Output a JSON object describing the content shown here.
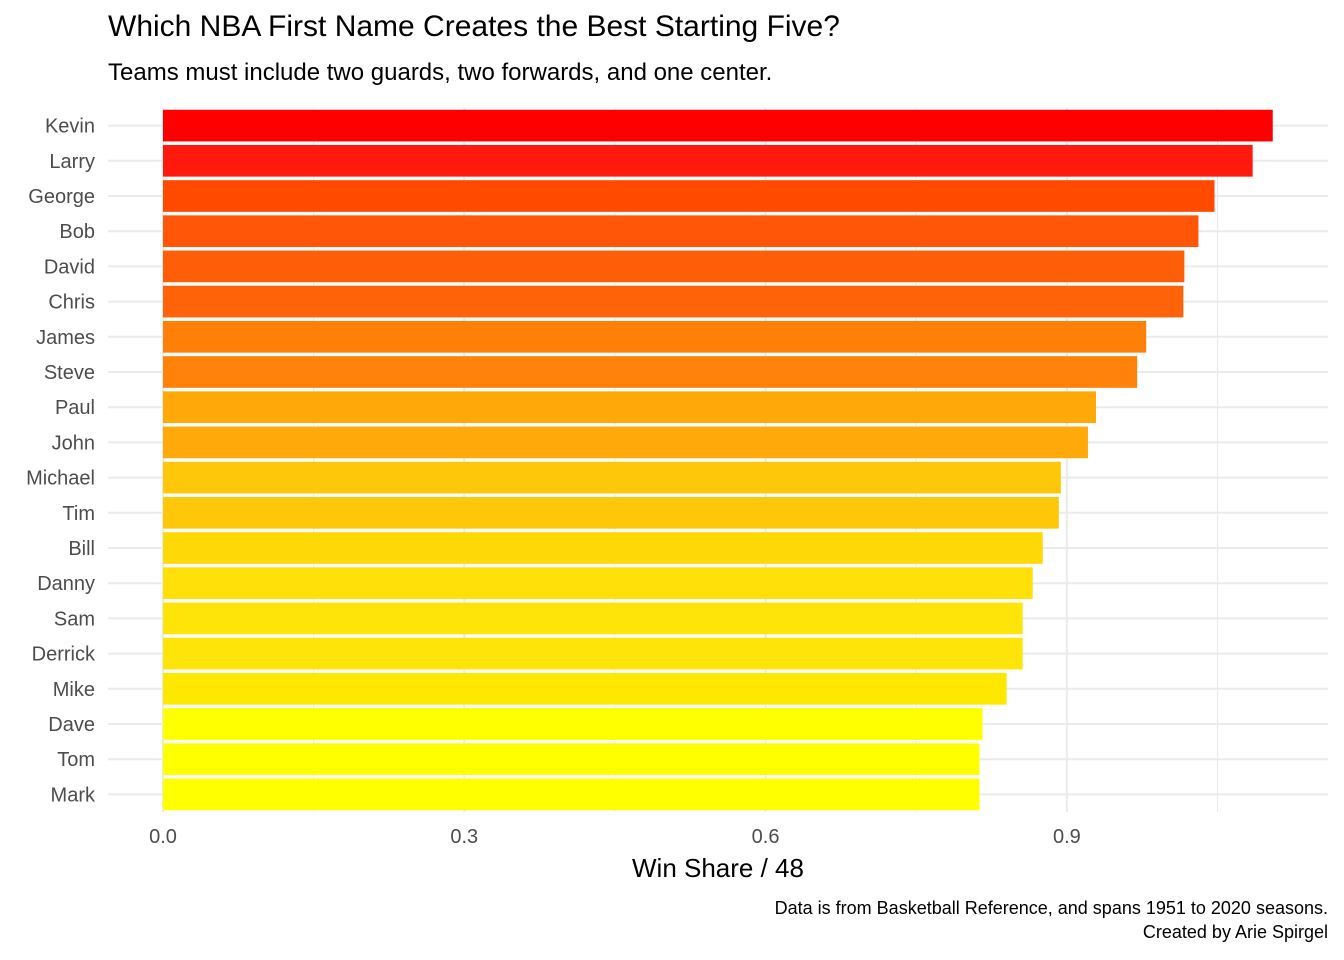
{
  "chart_data": {
    "type": "bar",
    "orientation": "horizontal",
    "title": "Which NBA First Name Creates the Best Starting Five?",
    "subtitle": "Teams must include two guards, two forwards, and one center.",
    "xlabel": "Win Share / 48",
    "ylabel": "",
    "caption": [
      "Data is from Basketball Reference, and spans 1951 to 2020 seasons.",
      "Created by Arie Spirgel"
    ],
    "categories": [
      "Kevin",
      "Larry",
      "George",
      "Bob",
      "David",
      "Chris",
      "James",
      "Steve",
      "Paul",
      "John",
      "Michael",
      "Tim",
      "Bill",
      "Danny",
      "Sam",
      "Derrick",
      "Mike",
      "Dave",
      "Tom",
      "Mark"
    ],
    "values": [
      1.105,
      1.085,
      1.047,
      1.031,
      1.017,
      1.016,
      0.979,
      0.97,
      0.929,
      0.921,
      0.894,
      0.892,
      0.876,
      0.866,
      0.856,
      0.856,
      0.84,
      0.816,
      0.813,
      0.813
    ],
    "colors": [
      "#FF0000",
      "#FF1A0D",
      "#FF4A00",
      "#FF5608",
      "#FF5E08",
      "#FF630A",
      "#FF8008",
      "#FF820A",
      "#FFA808",
      "#FFA90A",
      "#FFC70A",
      "#FFC70A",
      "#FFD808",
      "#FFE008",
      "#FFE40A",
      "#FFE40A",
      "#FFE800",
      "#FFFF00",
      "#FFFF00",
      "#FFFF00"
    ],
    "xticks": [
      0.0,
      0.3,
      0.6,
      0.9
    ],
    "xtick_labels": [
      "0.0",
      "0.3",
      "0.6",
      "0.9"
    ],
    "xlim": [
      -0.054,
      1.16
    ],
    "grid": true,
    "grid_color": "#EBEBEB",
    "tick_label_color": "#4D4D4D",
    "legend": "none"
  }
}
